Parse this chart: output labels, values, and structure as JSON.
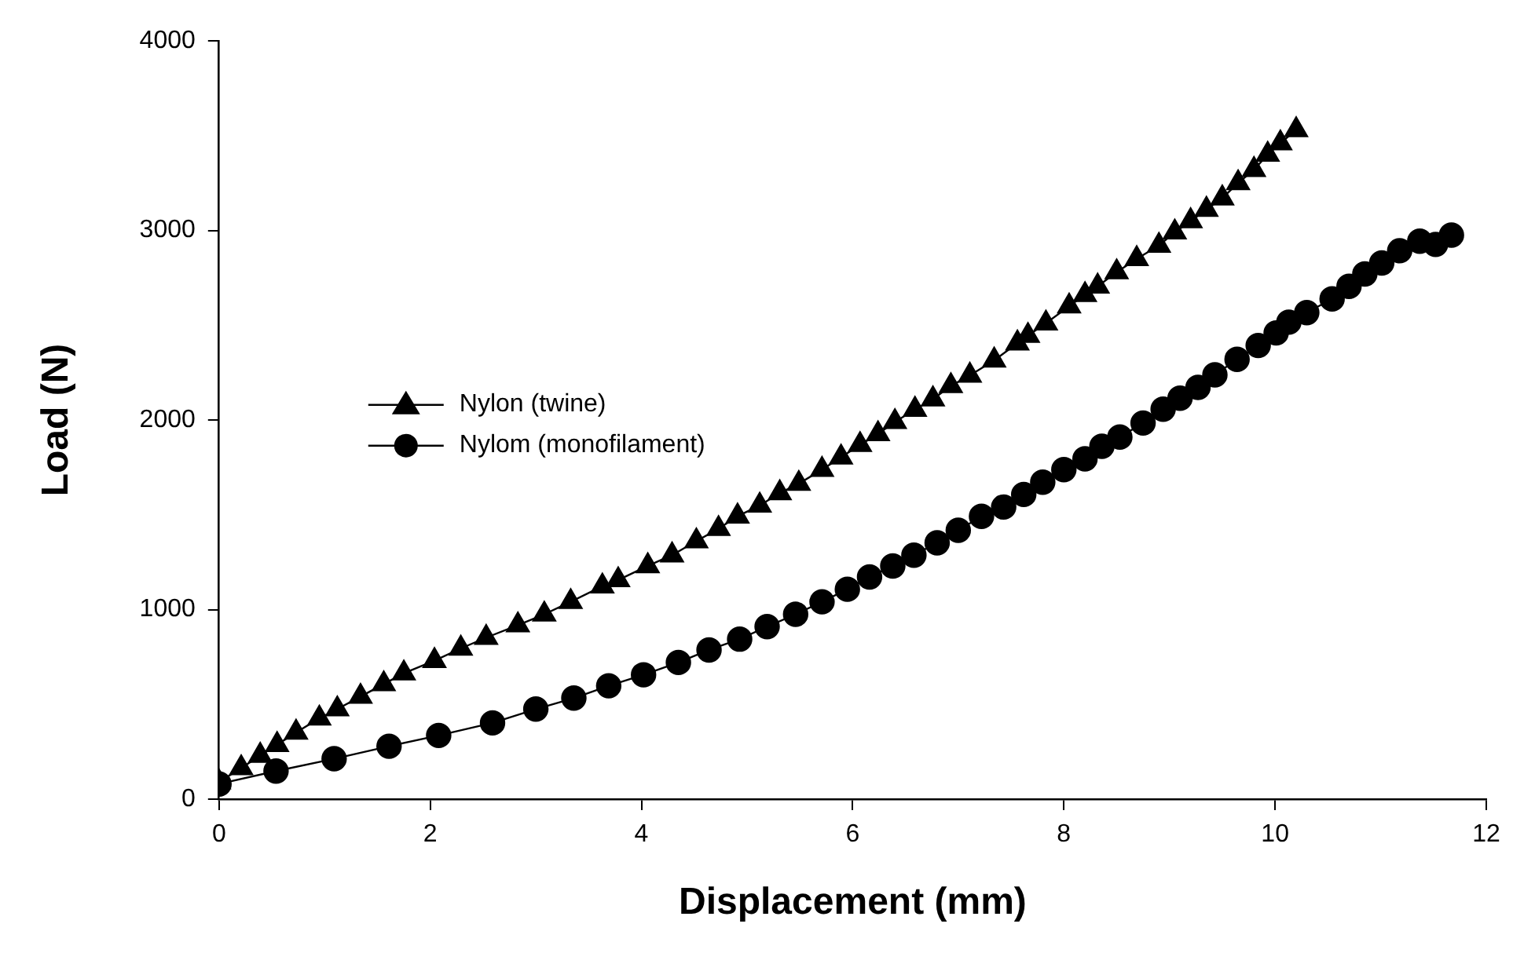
{
  "chart_data": {
    "type": "line",
    "xlabel": "Displacement (mm)",
    "ylabel": "Load (N)",
    "xlim": [
      0,
      12
    ],
    "xticks": [
      0,
      2,
      4,
      6,
      8,
      10,
      12
    ],
    "ylim": [
      0,
      4000
    ],
    "yticks": [
      0,
      1000,
      2000,
      3000,
      4000
    ],
    "grid": false,
    "legend": "left",
    "line_style": "solid",
    "series": [
      {
        "name": "Nylon (twine)",
        "color": "#000000",
        "marker": "triangle",
        "x": [
          0,
          0.21,
          0.39,
          0.55,
          0.73,
          0.95,
          1.12,
          1.34,
          1.56,
          1.75,
          2.04,
          2.29,
          2.53,
          2.83,
          3.08,
          3.33,
          3.63,
          3.78,
          4.06,
          4.29,
          4.52,
          4.73,
          4.91,
          5.12,
          5.31,
          5.49,
          5.71,
          5.89,
          6.07,
          6.24,
          6.4,
          6.59,
          6.76,
          6.93,
          7.11,
          7.34,
          7.56,
          7.66,
          7.83,
          8.05,
          8.2,
          8.32,
          8.5,
          8.69,
          8.9,
          9.05,
          9.2,
          9.35,
          9.5,
          9.65,
          9.8,
          9.93,
          10.05,
          10.2
        ],
        "values": [
          90,
          164,
          230,
          287,
          352,
          426,
          475,
          541,
          607,
          664,
          730,
          795,
          852,
          918,
          975,
          1041,
          1123,
          1156,
          1230,
          1287,
          1361,
          1426,
          1492,
          1549,
          1615,
          1664,
          1738,
          1803,
          1869,
          1926,
          1990,
          2055,
          2110,
          2180,
          2235,
          2315,
          2405,
          2445,
          2510,
          2600,
          2660,
          2705,
          2780,
          2850,
          2920,
          2990,
          3050,
          3110,
          3170,
          3250,
          3320,
          3400,
          3460,
          3530
        ]
      },
      {
        "name": "Nylom (monofilament)",
        "color": "#000000",
        "marker": "circle",
        "x": [
          0,
          0.54,
          1.09,
          1.61,
          2.08,
          2.59,
          3.0,
          3.36,
          3.69,
          4.02,
          4.35,
          4.64,
          4.93,
          5.19,
          5.46,
          5.71,
          5.95,
          6.16,
          6.38,
          6.58,
          6.8,
          7.0,
          7.22,
          7.43,
          7.62,
          7.8,
          8.0,
          8.2,
          8.36,
          8.53,
          8.75,
          8.94,
          9.1,
          9.27,
          9.43,
          9.64,
          9.84,
          10.01,
          10.13,
          10.3,
          10.54,
          10.7,
          10.85,
          11.01,
          11.18,
          11.37,
          11.52,
          11.67
        ],
        "values": [
          80,
          148,
          213,
          279,
          336,
          402,
          475,
          533,
          598,
          656,
          721,
          787,
          844,
          910,
          975,
          1041,
          1107,
          1172,
          1230,
          1287,
          1352,
          1418,
          1492,
          1541,
          1607,
          1672,
          1738,
          1795,
          1861,
          1910,
          1984,
          2057,
          2115,
          2172,
          2238,
          2320,
          2393,
          2459,
          2516,
          2566,
          2639,
          2705,
          2770,
          2828,
          2893,
          2943,
          2926,
          2975
        ]
      }
    ]
  }
}
